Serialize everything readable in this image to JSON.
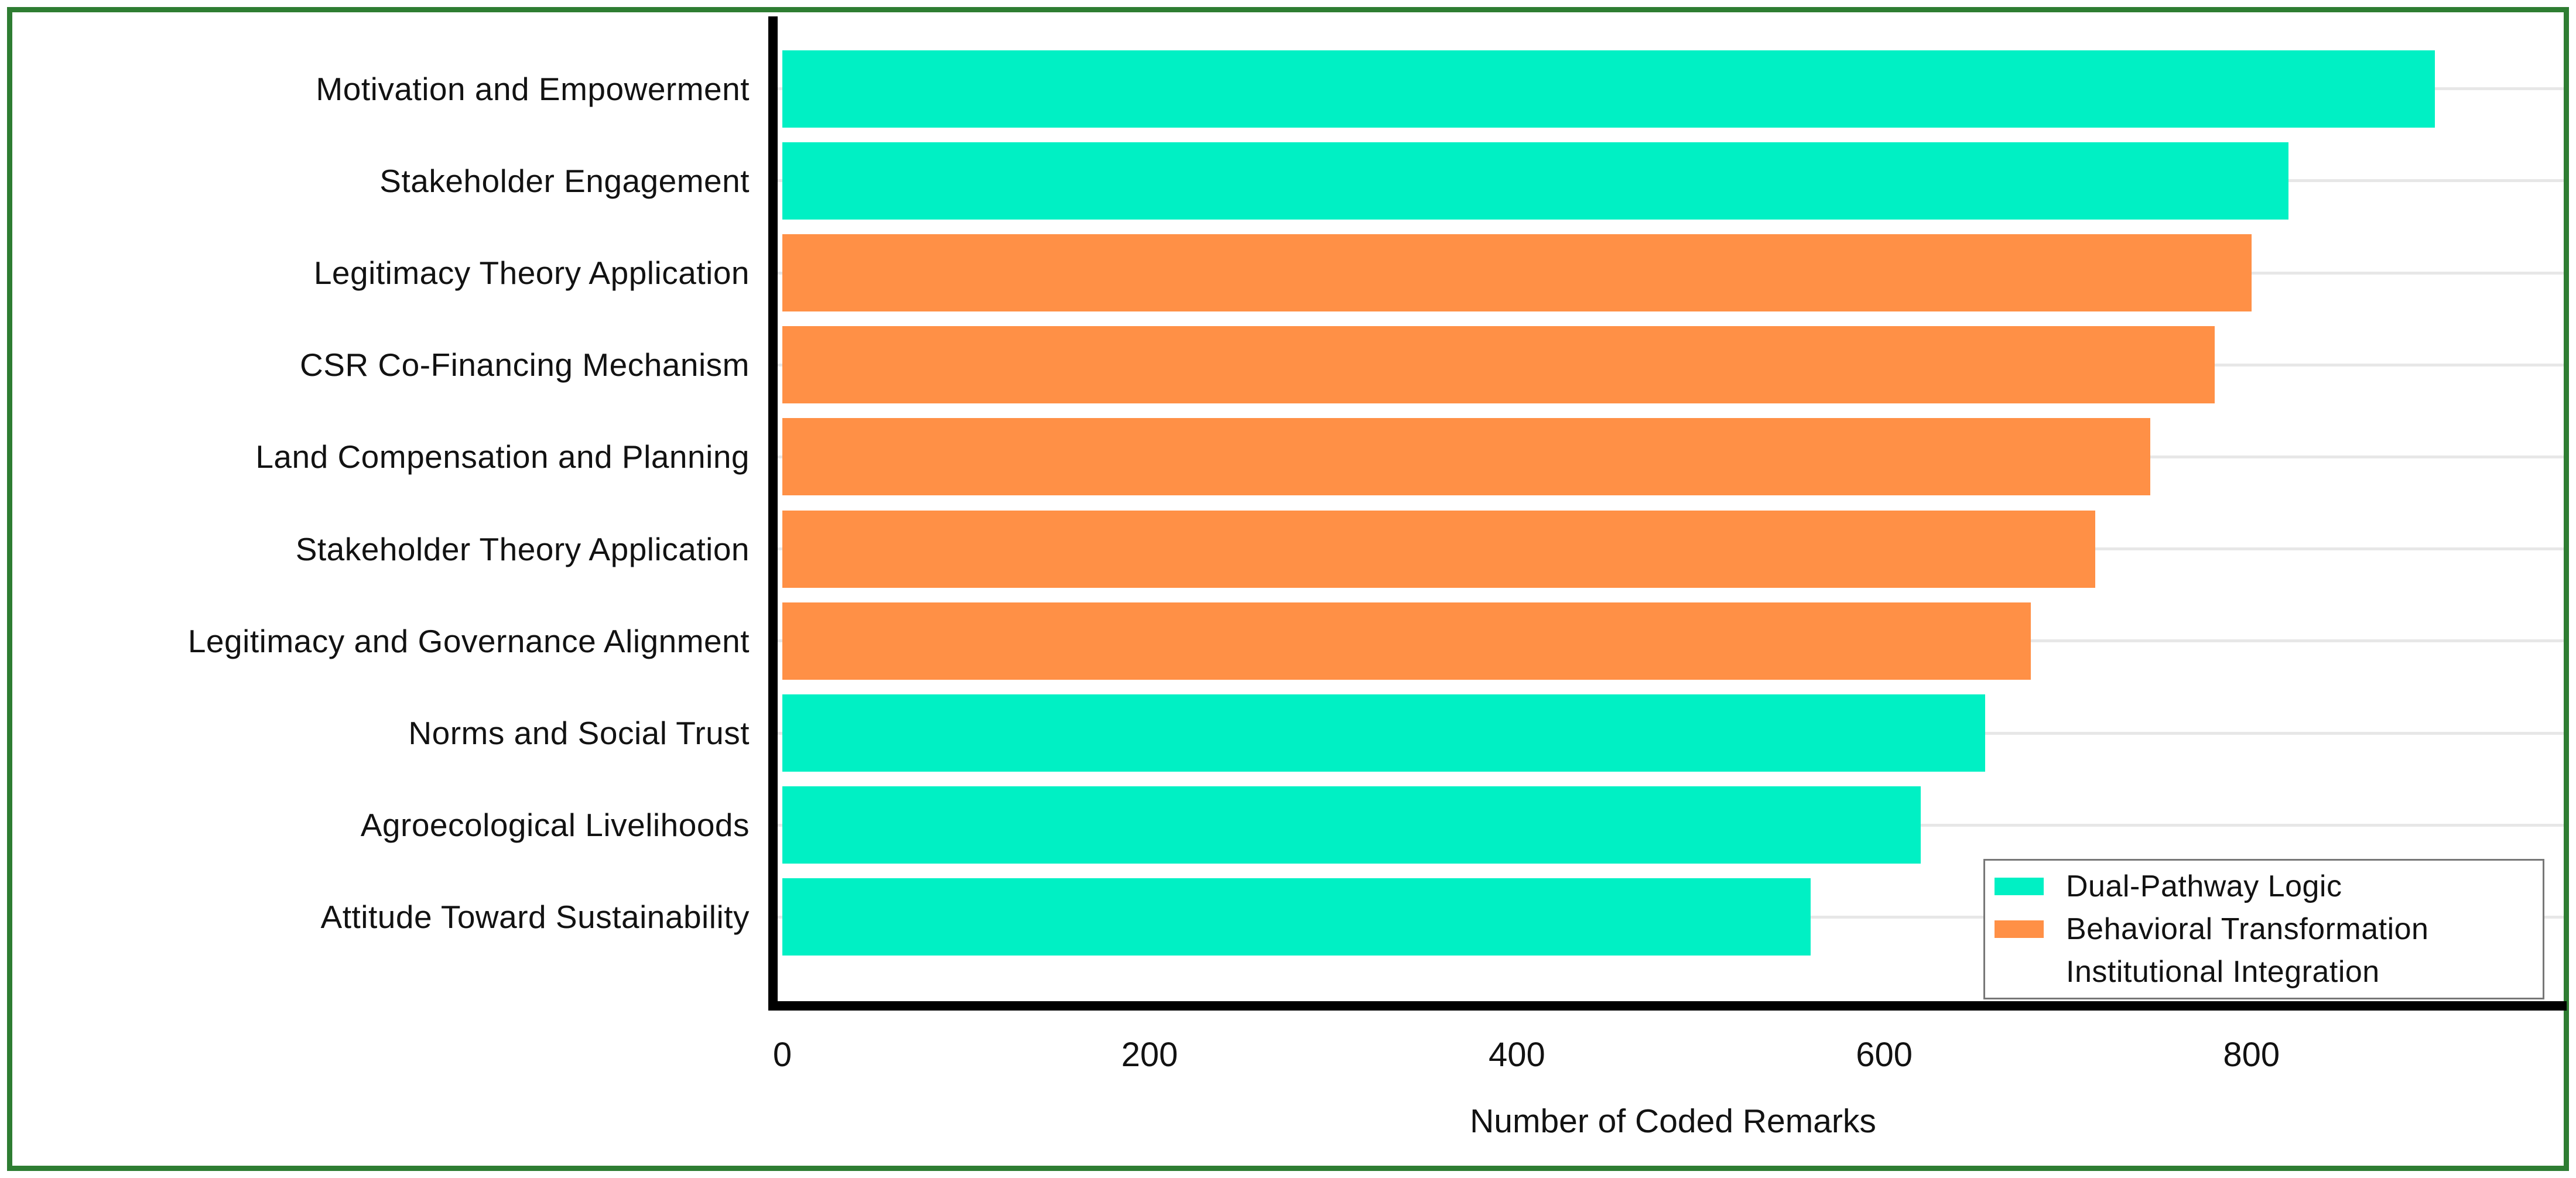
{
  "figure": {
    "border_color": "#2e7d32",
    "background": "#ffffff",
    "axis_color": "#000000",
    "gridline_color": "#e7e7e7"
  },
  "chart_data": {
    "type": "bar",
    "orientation": "horizontal",
    "title": "",
    "xlabel": "Number of Coded Remarks",
    "ylabel": "",
    "xlim": [
      0,
      970
    ],
    "x_ticks": [
      0,
      200,
      400,
      600,
      800
    ],
    "grid": "horizontal-row-gridlines",
    "legend_position": "lower-right",
    "categories": [
      "Motivation and Empowerment",
      "Stakeholder Engagement",
      "Legitimacy Theory Application",
      "CSR Co-Financing Mechanism",
      "Land Compensation and Planning",
      "Stakeholder Theory Application",
      "Legitimacy and Governance Alignment",
      "Norms and Social Trust",
      "Agroecological Livelihoods",
      "Attitude Toward Sustainability"
    ],
    "bars": [
      {
        "label": "Motivation and Empowerment",
        "value": 900,
        "series": "Dual-Pathway Logic",
        "color": "#00f0c4"
      },
      {
        "label": "Stakeholder Engagement",
        "value": 820,
        "series": "Dual-Pathway Logic",
        "color": "#00f0c4"
      },
      {
        "label": "Legitimacy Theory Application",
        "value": 800,
        "series": "Behavioral Transformation",
        "color": "#ff9046"
      },
      {
        "label": "CSR Co-Financing Mechanism",
        "value": 780,
        "series": "Behavioral Transformation",
        "color": "#ff9046"
      },
      {
        "label": "Land Compensation and Planning",
        "value": 745,
        "series": "Behavioral Transformation",
        "color": "#ff9046"
      },
      {
        "label": "Stakeholder Theory Application",
        "value": 715,
        "series": "Behavioral Transformation",
        "color": "#ff9046"
      },
      {
        "label": "Legitimacy and Governance Alignment",
        "value": 680,
        "series": "Behavioral Transformation",
        "color": "#ff9046"
      },
      {
        "label": "Norms and Social Trust",
        "value": 655,
        "series": "Dual-Pathway Logic",
        "color": "#00f0c4"
      },
      {
        "label": "Agroecological Livelihoods",
        "value": 620,
        "series": "Dual-Pathway Logic",
        "color": "#00f0c4"
      },
      {
        "label": "Attitude Toward Sustainability",
        "value": 560,
        "series": "Dual-Pathway Logic",
        "color": "#00f0c4"
      }
    ],
    "legend": [
      {
        "label": "Dual-Pathway Logic",
        "color": "#00f0c4"
      },
      {
        "label": "Behavioral Transformation",
        "color": "#ff9046"
      },
      {
        "label": "Institutional Integration",
        "color": null
      }
    ]
  }
}
